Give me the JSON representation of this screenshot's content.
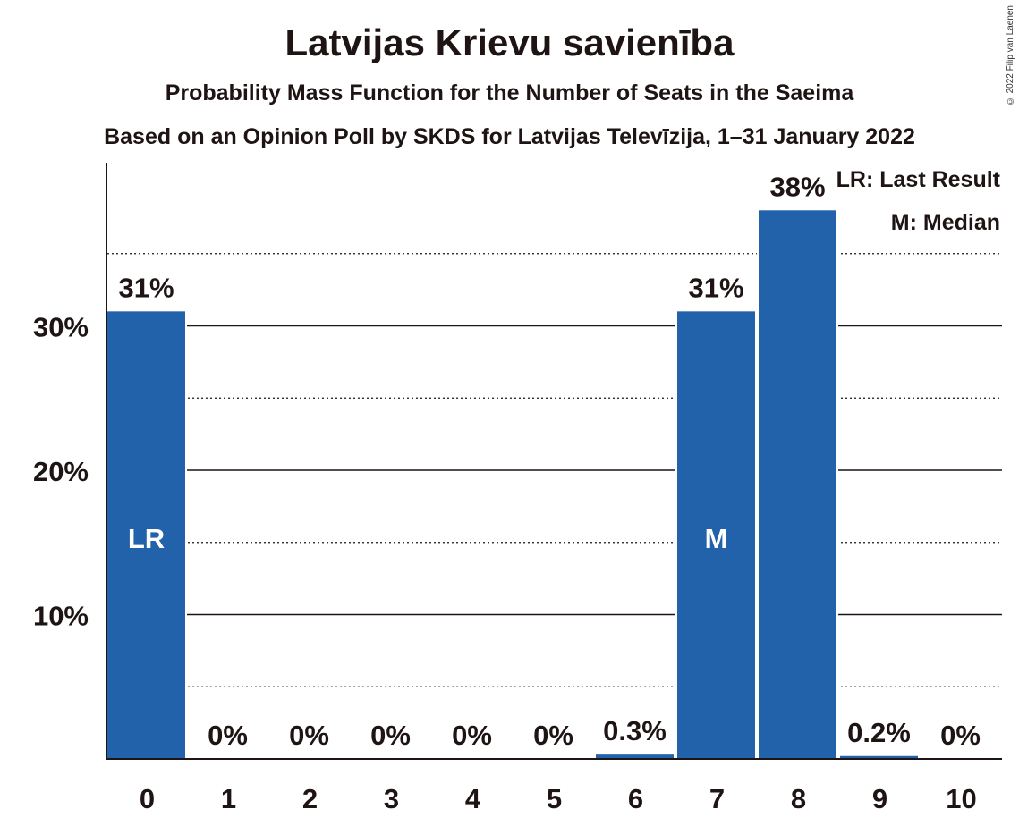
{
  "title": "Latvijas Krievu savienība",
  "subtitle": "Probability Mass Function for the Number of Seats in the Saeima",
  "subtitle2": "Based on an Opinion Poll by SKDS for Latvijas Televīzija, 1–31 January 2022",
  "copyright": "© 2022 Filip van Laenen",
  "legend": {
    "lr": "LR: Last Result",
    "m": "M: Median"
  },
  "colors": {
    "bar": "#2262ab",
    "text": "#1f1414"
  },
  "chart_data": {
    "type": "bar",
    "categories": [
      "0",
      "1",
      "2",
      "3",
      "4",
      "5",
      "6",
      "7",
      "8",
      "9",
      "10"
    ],
    "values": [
      31,
      0,
      0,
      0,
      0,
      0,
      0.3,
      31,
      38,
      0.2,
      0
    ],
    "value_labels": [
      "31%",
      "0%",
      "0%",
      "0%",
      "0%",
      "0%",
      "0.3%",
      "31%",
      "38%",
      "0.2%",
      "0%"
    ],
    "bar_markers": {
      "0": "LR",
      "7": "M"
    },
    "ytick_values": [
      10,
      20,
      30
    ],
    "ytick_labels": [
      "10%",
      "20%",
      "30%"
    ],
    "ylim": [
      0,
      40
    ],
    "grid": {
      "major": [
        10,
        20,
        30
      ],
      "minor": [
        5,
        15,
        25,
        35
      ]
    },
    "legend_position": "top-right"
  }
}
